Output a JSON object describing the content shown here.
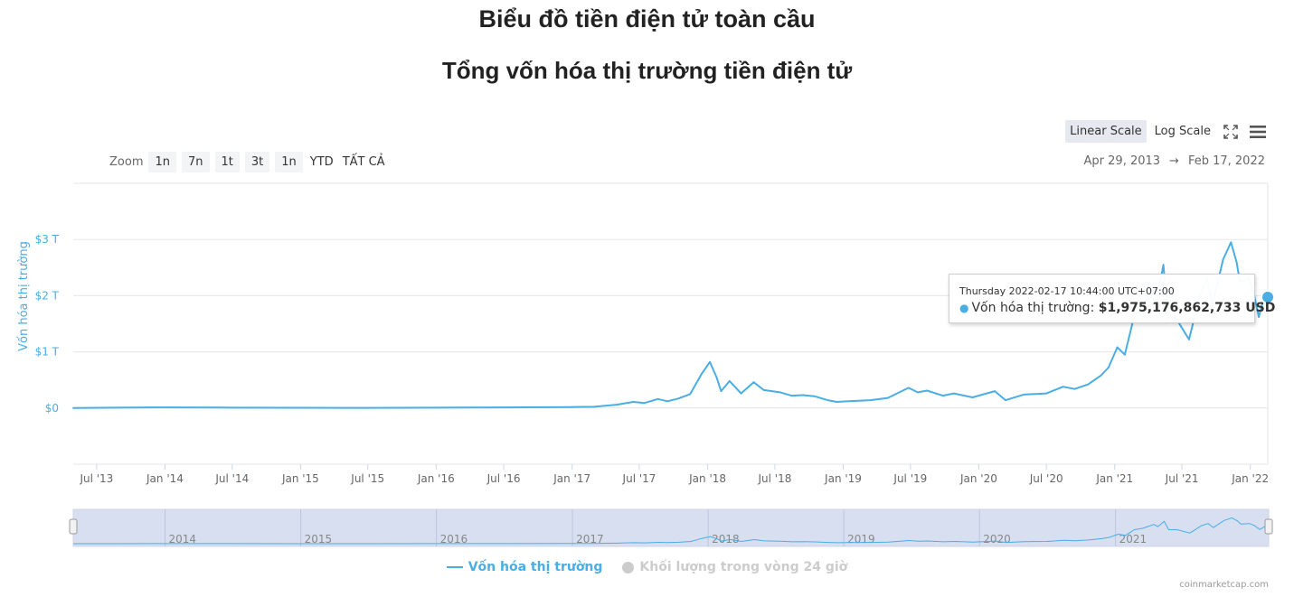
{
  "page": {
    "title": "Biểu đồ tiền điện tử toàn cầu",
    "subtitle": "Tổng vốn hóa thị trường tiền điện tử"
  },
  "scale_buttons": [
    {
      "label": "Linear Scale",
      "active": true
    },
    {
      "label": "Log Scale",
      "active": false
    }
  ],
  "icons": {
    "fullscreen": "fullscreen-icon",
    "menu": "hamburger-menu-icon"
  },
  "zoom": {
    "label": "Zoom",
    "buttons": [
      "1n",
      "7n",
      "1t",
      "3t",
      "1n",
      "YTD",
      "TẤT CẢ"
    ]
  },
  "range": {
    "from": "Apr 29, 2013",
    "arrow": "→",
    "to": "Feb 17, 2022"
  },
  "tooltip": {
    "date": "Thursday 2022-02-17 10:44:00 UTC+07:00",
    "series": "Vốn hóa thị trường:",
    "value": "$1,975,176,862,733 USD"
  },
  "legend": [
    {
      "label": "Vốn hóa thị trường",
      "visible": true
    },
    {
      "label": "Khối lượng trong vòng 24 giờ",
      "visible": false
    }
  ],
  "credits": "coinmarketcap.com",
  "colors": {
    "series": "#4aaee3",
    "axis_label": "#4aaee3",
    "grid": "#e6e6e6",
    "navigator_fill": "#d4dcef"
  },
  "chart_data": {
    "type": "line",
    "title": "Tổng vốn hóa thị trường tiền điện tử",
    "ylabel": "Vốn hóa thị trường",
    "unit": "USD trillions",
    "ylim": [
      -1,
      4
    ],
    "y_ticks": [
      {
        "value": 0,
        "label": "$0"
      },
      {
        "value": 1,
        "label": "$1 T"
      },
      {
        "value": 2,
        "label": "$2 T"
      },
      {
        "value": 3,
        "label": "$3 T"
      }
    ],
    "xlim": [
      "2013-04-29",
      "2022-02-17"
    ],
    "x_ticks": [
      {
        "date": "2013-07-01",
        "label": "Jul '13"
      },
      {
        "date": "2014-01-01",
        "label": "Jan '14"
      },
      {
        "date": "2014-07-01",
        "label": "Jul '14"
      },
      {
        "date": "2015-01-01",
        "label": "Jan '15"
      },
      {
        "date": "2015-07-01",
        "label": "Jul '15"
      },
      {
        "date": "2016-01-01",
        "label": "Jan '16"
      },
      {
        "date": "2016-07-01",
        "label": "Jul '16"
      },
      {
        "date": "2017-01-01",
        "label": "Jan '17"
      },
      {
        "date": "2017-07-01",
        "label": "Jul '17"
      },
      {
        "date": "2018-01-01",
        "label": "Jan '18"
      },
      {
        "date": "2018-07-01",
        "label": "Jul '18"
      },
      {
        "date": "2019-01-01",
        "label": "Jan '19"
      },
      {
        "date": "2019-07-01",
        "label": "Jul '19"
      },
      {
        "date": "2020-01-01",
        "label": "Jan '20"
      },
      {
        "date": "2020-07-01",
        "label": "Jul '20"
      },
      {
        "date": "2021-01-01",
        "label": "Jan '21"
      },
      {
        "date": "2021-07-01",
        "label": "Jul '21"
      },
      {
        "date": "2022-01-01",
        "label": "Jan '22"
      }
    ],
    "navigator_years": [
      {
        "date": "2014-01-01",
        "label": "2014"
      },
      {
        "date": "2015-01-01",
        "label": "2015"
      },
      {
        "date": "2016-01-01",
        "label": "2016"
      },
      {
        "date": "2017-01-01",
        "label": "2017"
      },
      {
        "date": "2018-01-01",
        "label": "2018"
      },
      {
        "date": "2019-01-01",
        "label": "2019"
      },
      {
        "date": "2020-01-01",
        "label": "2020"
      },
      {
        "date": "2021-01-01",
        "label": "2021"
      }
    ],
    "series": [
      {
        "name": "Vốn hóa thị trường",
        "points": [
          [
            "2013-04-29",
            0.0015
          ],
          [
            "2013-12-01",
            0.012
          ],
          [
            "2014-01-15",
            0.011
          ],
          [
            "2014-06-01",
            0.008
          ],
          [
            "2015-01-01",
            0.005
          ],
          [
            "2015-07-01",
            0.004
          ],
          [
            "2016-01-01",
            0.007
          ],
          [
            "2016-07-01",
            0.012
          ],
          [
            "2017-01-01",
            0.018
          ],
          [
            "2017-03-01",
            0.022
          ],
          [
            "2017-05-01",
            0.06
          ],
          [
            "2017-06-15",
            0.11
          ],
          [
            "2017-07-15",
            0.09
          ],
          [
            "2017-08-20",
            0.16
          ],
          [
            "2017-09-15",
            0.12
          ],
          [
            "2017-10-15",
            0.17
          ],
          [
            "2017-11-15",
            0.25
          ],
          [
            "2017-12-15",
            0.6
          ],
          [
            "2018-01-07",
            0.82
          ],
          [
            "2018-01-25",
            0.55
          ],
          [
            "2018-02-06",
            0.3
          ],
          [
            "2018-03-01",
            0.48
          ],
          [
            "2018-04-01",
            0.26
          ],
          [
            "2018-05-05",
            0.46
          ],
          [
            "2018-06-01",
            0.32
          ],
          [
            "2018-07-15",
            0.28
          ],
          [
            "2018-08-15",
            0.22
          ],
          [
            "2018-09-15",
            0.23
          ],
          [
            "2018-10-15",
            0.21
          ],
          [
            "2018-11-20",
            0.14
          ],
          [
            "2018-12-15",
            0.11
          ],
          [
            "2019-01-15",
            0.12
          ],
          [
            "2019-03-15",
            0.14
          ],
          [
            "2019-05-01",
            0.18
          ],
          [
            "2019-06-26",
            0.36
          ],
          [
            "2019-07-20",
            0.28
          ],
          [
            "2019-08-15",
            0.31
          ],
          [
            "2019-09-26",
            0.22
          ],
          [
            "2019-10-26",
            0.26
          ],
          [
            "2019-12-15",
            0.19
          ],
          [
            "2020-02-13",
            0.3
          ],
          [
            "2020-03-13",
            0.14
          ],
          [
            "2020-05-01",
            0.24
          ],
          [
            "2020-07-01",
            0.26
          ],
          [
            "2020-08-15",
            0.38
          ],
          [
            "2020-09-15",
            0.34
          ],
          [
            "2020-10-21",
            0.42
          ],
          [
            "2020-11-25",
            0.58
          ],
          [
            "2020-12-15",
            0.72
          ],
          [
            "2021-01-08",
            1.08
          ],
          [
            "2021-01-28",
            0.95
          ],
          [
            "2021-02-21",
            1.6
          ],
          [
            "2021-03-15",
            1.75
          ],
          [
            "2021-04-14",
            2.2
          ],
          [
            "2021-04-25",
            1.95
          ],
          [
            "2021-05-12",
            2.55
          ],
          [
            "2021-05-24",
            1.6
          ],
          [
            "2021-06-15",
            1.6
          ],
          [
            "2021-07-20",
            1.22
          ],
          [
            "2021-08-20",
            2.05
          ],
          [
            "2021-09-07",
            2.3
          ],
          [
            "2021-09-21",
            1.85
          ],
          [
            "2021-10-20",
            2.65
          ],
          [
            "2021-11-10",
            2.95
          ],
          [
            "2021-11-25",
            2.6
          ],
          [
            "2021-12-04",
            2.25
          ],
          [
            "2021-12-28",
            2.3
          ],
          [
            "2022-01-10",
            2.05
          ],
          [
            "2022-01-24",
            1.62
          ],
          [
            "2022-02-10",
            2.05
          ],
          [
            "2022-02-17",
            1.975
          ]
        ]
      }
    ],
    "tooltip_point": {
      "date": "2022-02-17",
      "value": 1.975
    },
    "grid": true,
    "legend_position": "bottom-center"
  }
}
